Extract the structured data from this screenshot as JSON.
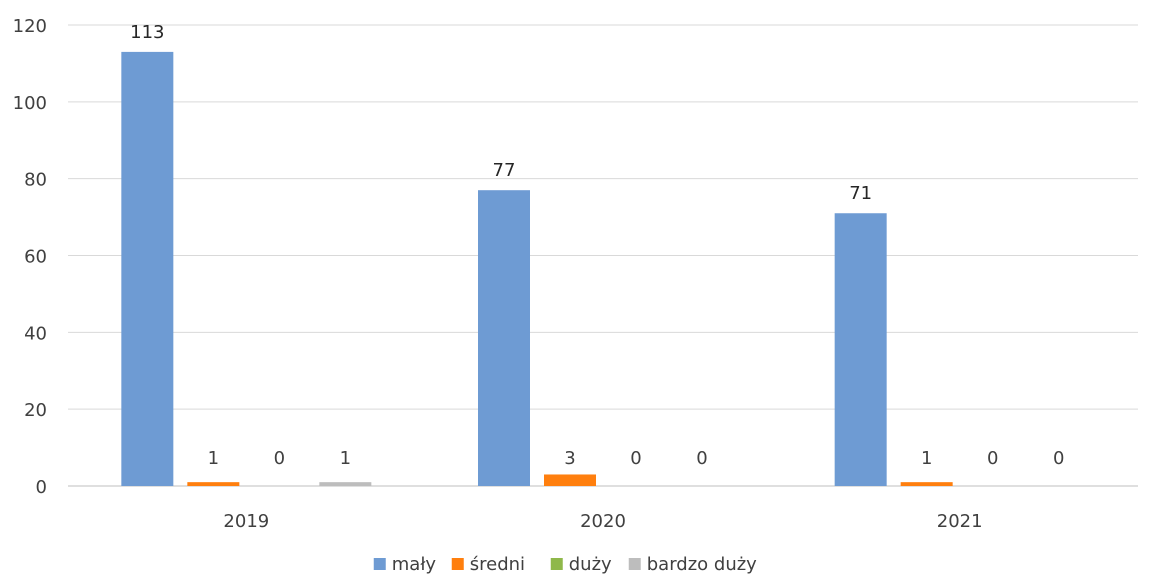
{
  "chart_data": {
    "type": "bar",
    "title": "",
    "xlabel": "",
    "ylabel": "",
    "categories": [
      "2019",
      "2020",
      "2021"
    ],
    "ylim": [
      0,
      120
    ],
    "yticks": [
      0,
      20,
      40,
      60,
      80,
      100,
      120
    ],
    "grid": true,
    "legend_position": "bottom",
    "series": [
      {
        "name": "mały",
        "color": "#6e9bd3",
        "values": [
          113,
          77,
          71
        ]
      },
      {
        "name": "średni",
        "color": "#ff7f0e",
        "values": [
          1,
          3,
          1
        ]
      },
      {
        "name": "duży",
        "color": "#8fb84a",
        "values": [
          0,
          0,
          0
        ]
      },
      {
        "name": "bardzo duży",
        "color": "#bdbdbd",
        "values": [
          1,
          0,
          0
        ]
      }
    ]
  }
}
